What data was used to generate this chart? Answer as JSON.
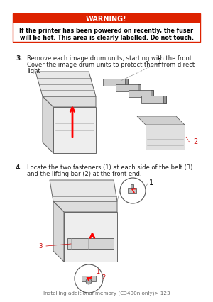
{
  "bg_color": "#ffffff",
  "warning_bar_color": "#dd2200",
  "warning_text": "WARNING!",
  "warning_body_line1": "If the printer has been powered on recently, the fuser",
  "warning_body_line2": "will be hot. This area is clearly labelled. Do not touch.",
  "step3_num": "3.",
  "step3_text_line1": "Remove each image drum units, starting with the front.",
  "step3_text_line2": "Cover the image drum units to protect them from direct",
  "step3_text_line3": "light",
  "step4_num": "4.",
  "step4_text_line1": "Locate the two fasteners (1) at each side of the belt (3)",
  "step4_text_line2": "and the lifting bar (2) at the front end.",
  "footer_text": "Installing additional memory (C3400n only)> 123",
  "text_color": "#222222",
  "label_color_red": "#cc0000",
  "label_color_black": "#333333",
  "line_color": "#666666",
  "body_fill": "#f0f0f0",
  "dark_fill": "#aaaaaa"
}
